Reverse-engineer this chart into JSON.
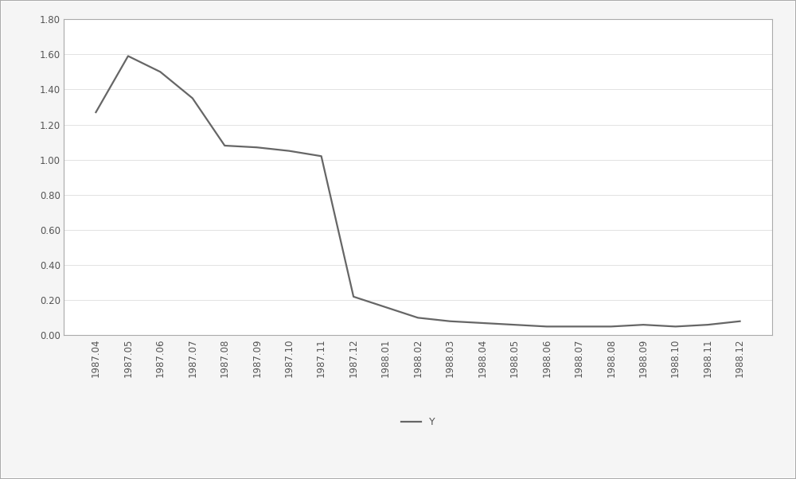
{
  "x_labels": [
    "1987.04",
    "1987.05",
    "1987.06",
    "1987.07",
    "1987.08",
    "1987.09",
    "1987.10",
    "1987.11",
    "1987.12",
    "1988.01",
    "1988.02",
    "1988.03",
    "1988.04",
    "1988.05",
    "1988.06",
    "1988.07",
    "1988.08",
    "1988.09",
    "1988.10",
    "1988.11",
    "1988.12"
  ],
  "y_values": [
    1.27,
    1.59,
    1.5,
    1.35,
    1.08,
    1.07,
    1.05,
    1.02,
    0.22,
    0.16,
    0.1,
    0.08,
    0.07,
    0.06,
    0.05,
    0.05,
    0.05,
    0.06,
    0.05,
    0.06,
    0.08
  ],
  "line_color": "#666666",
  "line_width": 1.6,
  "ylim": [
    0.0,
    1.8
  ],
  "yticks": [
    0.0,
    0.2,
    0.4,
    0.6,
    0.8,
    1.0,
    1.2,
    1.4,
    1.6,
    1.8
  ],
  "legend_label": "Y",
  "background_color": "#f5f5f5",
  "plot_bg_color": "#ffffff",
  "grid_color": "#dddddd",
  "border_color": "#aaaaaa",
  "font_size": 8.5,
  "legend_fontsize": 9,
  "tick_color": "#555555"
}
